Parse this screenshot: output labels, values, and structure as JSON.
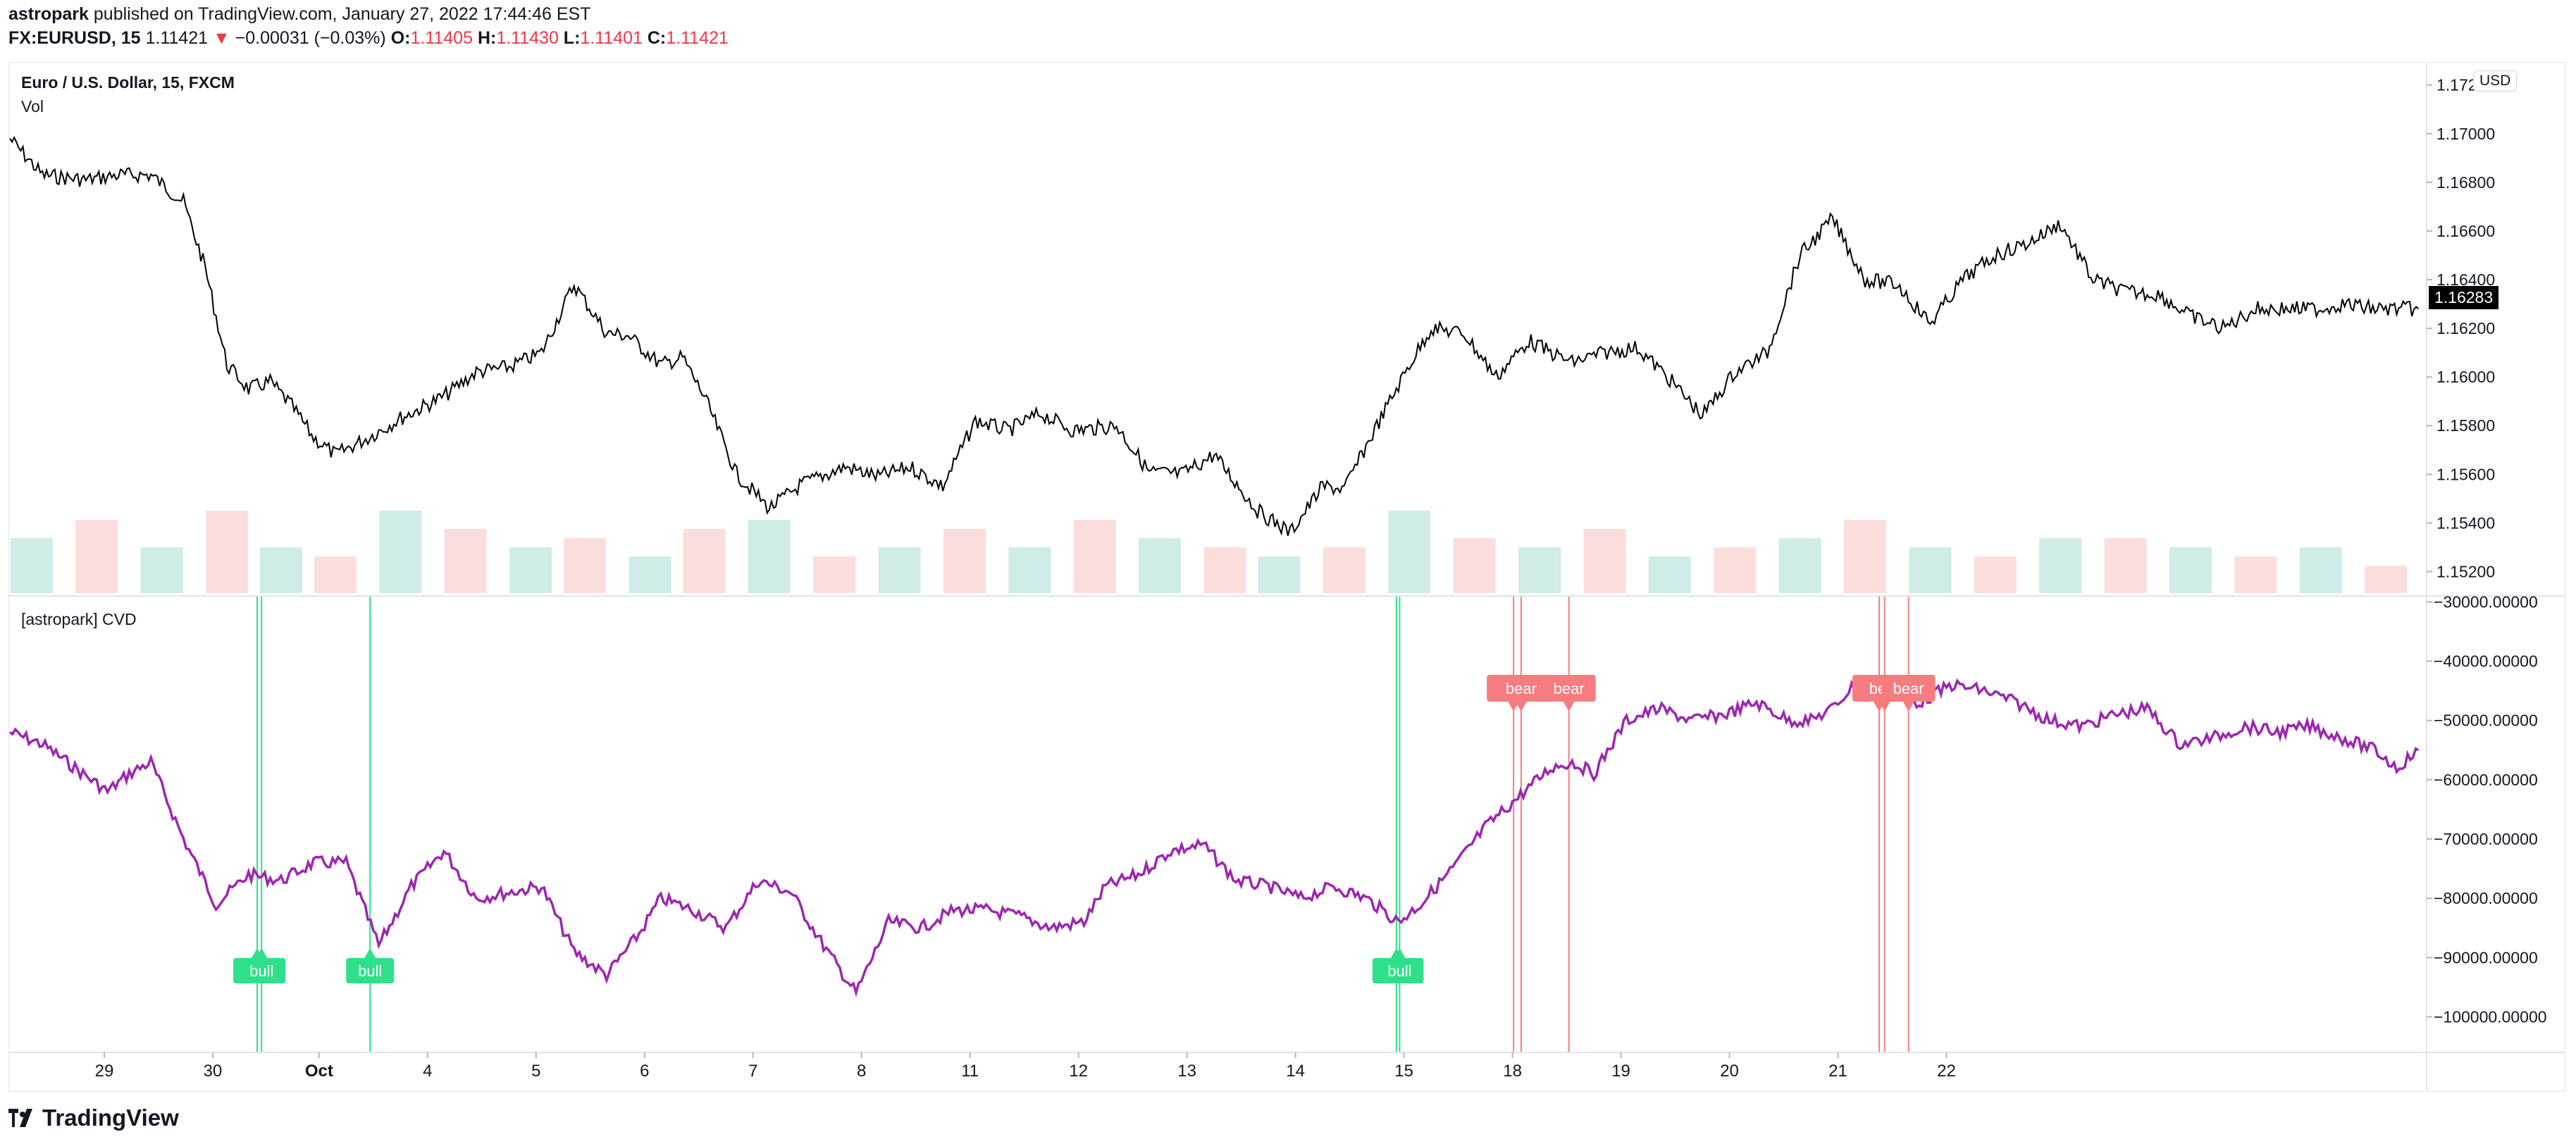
{
  "header": {
    "publisher": "astropark",
    "published_text": "published on TradingView.com, January 27, 2022 17:44:46 EST",
    "symbol": "FX:EURUSD, 15",
    "last_price": "1.11421",
    "change_arrow": "▼",
    "change": "−0.00031 (−0.03%)",
    "o_label": "O:",
    "o_value": "1.11405",
    "h_label": "H:",
    "h_value": "1.11430",
    "l_label": "L:",
    "l_value": "1.11401",
    "c_label": "C:",
    "c_value": "1.11421"
  },
  "price_pane": {
    "title": "Euro / U.S. Dollar, 15, FXCM",
    "volume_label": "Vol",
    "currency_badge": "USD",
    "last_price_tag": "1.16283"
  },
  "cvd_pane": {
    "title": "[astropark] CVD"
  },
  "colors": {
    "cvd_line": "#9c27b0",
    "bull": "#2ee08a",
    "bear": "#f77c80",
    "volume_up": "#a8dcd4",
    "volume_down": "#f7c2c0",
    "price_line": "#000000",
    "last_tag_bg": "#000000"
  },
  "footer": {
    "logo_icon": "tradingview-logo-icon",
    "brand": "TradingView"
  },
  "chart_data": [
    {
      "type": "line",
      "title": "Euro / U.S. Dollar, 15, FXCM",
      "xlabel": "",
      "ylabel": "",
      "ylim": [
        1.151,
        1.1726
      ],
      "y_ticks": [
        "1.17200",
        "1.17000",
        "1.16800",
        "1.16600",
        "1.16400",
        "1.16200",
        "1.16000",
        "1.15800",
        "1.15600",
        "1.15400",
        "1.15200"
      ],
      "x_ticks": [
        "29",
        "30",
        "Oct",
        "4",
        "5",
        "6",
        "7",
        "8",
        "11",
        "12",
        "13",
        "14",
        "15",
        "18",
        "19",
        "20",
        "21",
        "22"
      ],
      "series": [
        {
          "x": [
            0,
            0.3,
            0.7,
            1.0,
            1.3,
            1.6,
            1.8,
            2.0,
            2.2,
            2.4,
            2.6,
            2.8,
            3.0,
            3.3,
            3.6,
            4.0,
            4.3,
            4.6,
            4.9,
            5.2,
            5.5,
            5.7,
            6.0,
            6.2,
            6.4,
            6.7,
            7.0,
            7.3,
            7.7,
            8.0,
            8.3,
            8.6,
            8.9,
            9.2,
            9.5,
            9.8,
            10.2,
            10.5,
            10.8,
            11.1,
            11.5,
            11.8,
            12.1,
            12.3,
            12.6,
            12.9,
            13.1,
            13.4,
            13.7,
            14.0,
            14.2,
            14.4,
            14.7,
            15.0,
            15.3,
            15.6,
            15.9,
            16.2,
            16.5,
            16.8,
            17.1,
            17.4,
            17.7,
            18.0,
            18.3,
            18.6,
            18.9,
            19.2,
            19.5,
            19.8,
            20.1,
            20.4,
            20.7,
            21.0,
            21.3,
            21.5,
            21.8,
            22.0,
            22.2
          ],
          "values": [
            1.1698,
            1.1683,
            1.1681,
            1.1683,
            1.1683,
            1.1672,
            1.1645,
            1.1605,
            1.1595,
            1.1598,
            1.1588,
            1.1575,
            1.1568,
            1.1575,
            1.1583,
            1.1592,
            1.1602,
            1.1604,
            1.161,
            1.1638,
            1.1618,
            1.1617,
            1.1605,
            1.1608,
            1.1592,
            1.156,
            1.1546,
            1.1556,
            1.1563,
            1.1559,
            1.1563,
            1.1555,
            1.1582,
            1.1578,
            1.1585,
            1.1578,
            1.158,
            1.1561,
            1.156,
            1.1568,
            1.1545,
            1.1536,
            1.1555,
            1.1554,
            1.158,
            1.1605,
            1.162,
            1.1618,
            1.16,
            1.1615,
            1.161,
            1.1606,
            1.161,
            1.1612,
            1.1599,
            1.1584,
            1.1602,
            1.161,
            1.165,
            1.1665,
            1.164,
            1.1638,
            1.1622,
            1.164,
            1.165,
            1.1655,
            1.1663,
            1.164,
            1.1635,
            1.1634,
            1.1625,
            1.162,
            1.1628,
            1.1628,
            1.1628,
            1.163,
            1.1628,
            1.1628,
            1.1628
          ]
        }
      ],
      "volume": {
        "x": [
          0.2,
          0.8,
          1.4,
          2.0,
          2.5,
          3.0,
          3.6,
          4.2,
          4.8,
          5.3,
          5.9,
          6.4,
          7.0,
          7.6,
          8.2,
          8.8,
          9.4,
          10.0,
          10.6,
          11.2,
          11.7,
          12.3,
          12.9,
          13.5,
          14.1,
          14.7,
          15.3,
          15.9,
          16.5,
          17.1,
          17.7,
          18.3,
          18.9,
          19.5,
          20.1,
          20.7,
          21.3,
          21.9
        ],
        "values": [
          0.6,
          0.8,
          0.5,
          0.9,
          0.5,
          0.4,
          0.9,
          0.7,
          0.5,
          0.6,
          0.4,
          0.7,
          0.8,
          0.4,
          0.5,
          0.7,
          0.5,
          0.8,
          0.6,
          0.5,
          0.4,
          0.5,
          0.9,
          0.6,
          0.5,
          0.7,
          0.4,
          0.5,
          0.6,
          0.8,
          0.5,
          0.4,
          0.6,
          0.6,
          0.5,
          0.4,
          0.5,
          0.3
        ]
      }
    },
    {
      "type": "line",
      "title": "[astropark] CVD",
      "xlabel": "",
      "ylabel": "",
      "ylim": [
        -106000,
        -29000
      ],
      "y_ticks": [
        "−30000.00000",
        "−40000.00000",
        "−50000.00000",
        "−60000.00000",
        "−70000.00000",
        "−80000.00000",
        "−90000.00000",
        "−100000.00000"
      ],
      "series": [
        {
          "x": [
            0,
            0.3,
            0.6,
            0.9,
            1.1,
            1.3,
            1.6,
            1.9,
            2.2,
            2.5,
            2.8,
            3.1,
            3.4,
            3.7,
            4.0,
            4.3,
            4.6,
            4.9,
            5.2,
            5.5,
            5.8,
            6.0,
            6.3,
            6.6,
            6.9,
            7.2,
            7.5,
            7.8,
            8.1,
            8.4,
            8.7,
            9.0,
            9.3,
            9.6,
            9.9,
            10.1,
            10.4,
            10.7,
            11.0,
            11.3,
            11.6,
            11.9,
            12.2,
            12.5,
            12.8,
            13.0,
            13.3,
            13.6,
            13.9,
            14.2,
            14.4,
            14.6,
            14.9,
            15.2,
            15.5,
            15.8,
            16.1,
            16.4,
            16.6,
            16.8,
            17.0,
            17.3,
            17.6,
            17.9,
            18.2,
            18.5,
            18.8,
            19.1,
            19.4,
            19.7,
            20.0,
            20.3,
            20.6,
            20.9,
            21.2,
            21.5,
            21.8,
            22.0,
            22.2
          ],
          "values": [
            -52000,
            -54000,
            -58000,
            -62000,
            -59000,
            -57000,
            -70000,
            -81000,
            -76000,
            -77000,
            -74000,
            -74000,
            -88000,
            -78000,
            -72000,
            -80000,
            -79000,
            -78000,
            -89000,
            -93000,
            -86000,
            -80000,
            -82000,
            -85000,
            -77000,
            -79000,
            -88000,
            -96000,
            -84000,
            -85000,
            -82000,
            -82000,
            -83000,
            -85000,
            -84000,
            -78000,
            -76000,
            -72000,
            -71000,
            -77000,
            -78000,
            -80000,
            -78000,
            -80000,
            -84000,
            -81000,
            -75000,
            -68000,
            -63000,
            -58000,
            -57000,
            -59000,
            -50000,
            -48000,
            -50000,
            -49000,
            -47000,
            -50000,
            -50000,
            -48000,
            -44000,
            -45000,
            -47000,
            -44000,
            -45000,
            -47000,
            -50000,
            -51000,
            -49000,
            -48000,
            -54000,
            -53000,
            -51000,
            -52000,
            -51000,
            -53000,
            -55000,
            -58000,
            -55000
          ]
        }
      ],
      "signals": [
        {
          "label": "bull",
          "x": 2.28,
          "kind": "bull"
        },
        {
          "label": "bull",
          "x": 2.32,
          "kind": "bull"
        },
        {
          "label": "bull",
          "x": 3.32,
          "kind": "bull"
        },
        {
          "label": "bull",
          "x": 12.78,
          "kind": "bull"
        },
        {
          "label": "bull",
          "x": 12.81,
          "kind": "bull"
        },
        {
          "label": "bear",
          "x": 13.86,
          "kind": "bear"
        },
        {
          "label": "bear",
          "x": 13.93,
          "kind": "bear"
        },
        {
          "label": "bear",
          "x": 14.37,
          "kind": "bear"
        },
        {
          "label": "bear",
          "x": 17.23,
          "kind": "bear"
        },
        {
          "label": "bear",
          "x": 17.28,
          "kind": "bear"
        },
        {
          "label": "bear",
          "x": 17.5,
          "kind": "bear"
        }
      ]
    }
  ]
}
